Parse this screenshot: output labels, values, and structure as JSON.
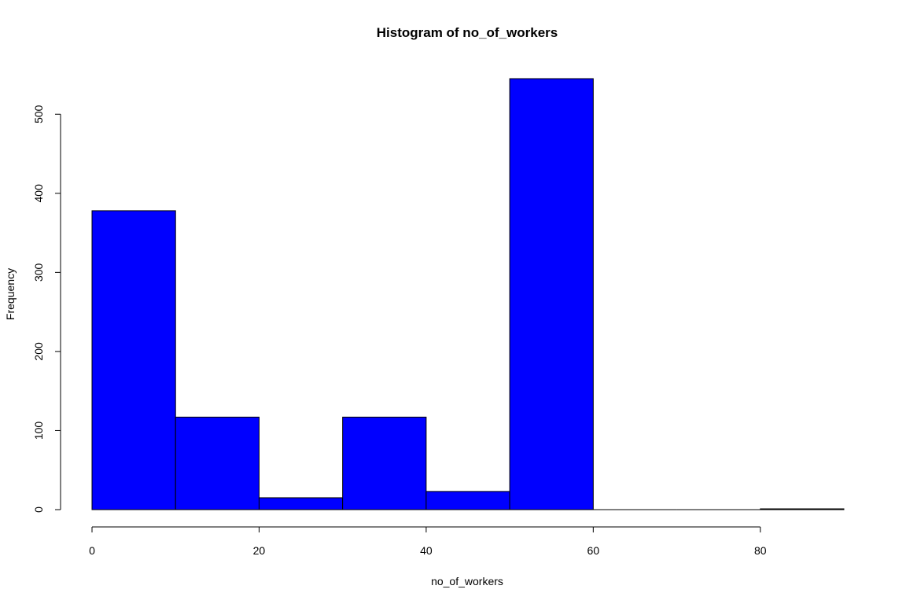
{
  "chart_data": {
    "type": "bar",
    "title": "Histogram of no_of_workers",
    "xlabel": "no_of_workers",
    "ylabel": "Frequency",
    "bar_color": "#0000ff",
    "bins": [
      {
        "from": 0,
        "to": 10,
        "count": 378
      },
      {
        "from": 10,
        "to": 20,
        "count": 117
      },
      {
        "from": 20,
        "to": 30,
        "count": 15
      },
      {
        "from": 30,
        "to": 40,
        "count": 117
      },
      {
        "from": 40,
        "to": 50,
        "count": 23
      },
      {
        "from": 50,
        "to": 60,
        "count": 545
      },
      {
        "from": 60,
        "to": 70,
        "count": 0
      },
      {
        "from": 70,
        "to": 80,
        "count": 0
      },
      {
        "from": 80,
        "to": 90,
        "count": 1
      }
    ],
    "xlim": [
      0,
      90
    ],
    "ylim": [
      0,
      545
    ],
    "x_ticks": [
      0,
      20,
      40,
      60,
      80
    ],
    "y_ticks": [
      0,
      100,
      200,
      300,
      400,
      500
    ],
    "grid": false
  }
}
